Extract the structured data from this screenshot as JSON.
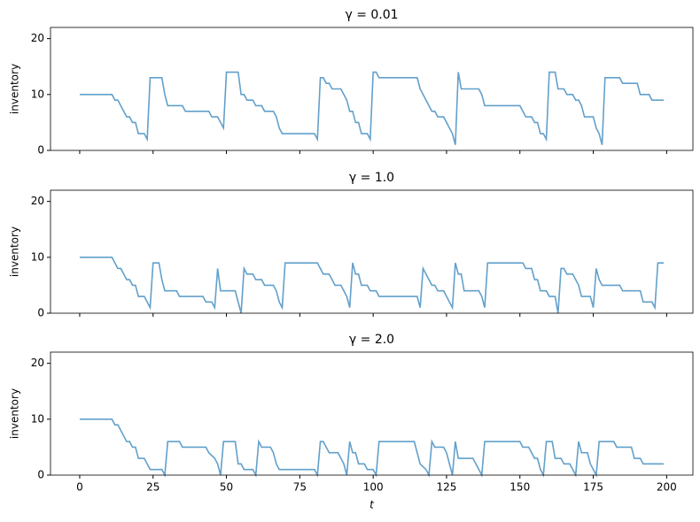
{
  "chart_data": [
    {
      "type": "line",
      "title": "γ = 0.01",
      "ylabel": "inventory",
      "color": "#62a0cb",
      "show_xticklabels": false,
      "xlim": [
        -9.95,
        208.95
      ],
      "ylim": [
        0,
        22
      ],
      "xticks": [
        0,
        25,
        50,
        75,
        100,
        125,
        150,
        175,
        200
      ],
      "yticks": [
        0,
        10,
        20
      ],
      "x": [
        0,
        11,
        12,
        13,
        14,
        15,
        16,
        17,
        18,
        19,
        20,
        22,
        23,
        24,
        28,
        29,
        30,
        35,
        36,
        44,
        45,
        47,
        48,
        49,
        50,
        54,
        55,
        56,
        57,
        59,
        60,
        62,
        63,
        66,
        67,
        68,
        69,
        80,
        81,
        82,
        83,
        84,
        85,
        86,
        89,
        90,
        91,
        92,
        93,
        94,
        95,
        96,
        98,
        99,
        100,
        101,
        102,
        115,
        116,
        118,
        120,
        121,
        122,
        124,
        125,
        126,
        127,
        128,
        129,
        130,
        136,
        137,
        138,
        150,
        151,
        152,
        154,
        155,
        156,
        157,
        158,
        159,
        160,
        162,
        163,
        165,
        166,
        168,
        169,
        170,
        171,
        172,
        175,
        176,
        177,
        178,
        179,
        184,
        185,
        190,
        191,
        194,
        195,
        199
      ],
      "values": [
        10,
        10,
        9,
        9,
        8,
        7,
        6,
        6,
        5,
        5,
        3,
        3,
        2,
        13,
        13,
        10,
        8,
        8,
        7,
        7,
        6,
        6,
        5,
        4,
        14,
        14,
        10,
        10,
        9,
        9,
        8,
        8,
        7,
        7,
        6,
        4,
        3,
        3,
        2,
        13,
        13,
        12,
        12,
        11,
        11,
        10,
        9,
        7,
        7,
        5,
        5,
        3,
        3,
        2,
        14,
        14,
        13,
        13,
        11,
        9,
        7,
        7,
        6,
        6,
        5,
        4,
        3,
        1,
        14,
        11,
        11,
        10,
        8,
        8,
        7,
        6,
        6,
        5,
        5,
        3,
        3,
        2,
        14,
        14,
        11,
        11,
        10,
        10,
        9,
        9,
        8,
        6,
        6,
        4,
        3,
        1,
        13,
        13,
        12,
        12,
        10,
        10,
        9,
        9
      ]
    },
    {
      "type": "line",
      "title": "γ = 1.0",
      "ylabel": "inventory",
      "color": "#62a0cb",
      "show_xticklabels": false,
      "xlim": [
        -9.95,
        208.95
      ],
      "ylim": [
        0,
        22
      ],
      "xticks": [
        0,
        25,
        50,
        75,
        100,
        125,
        150,
        175,
        200
      ],
      "yticks": [
        0,
        10,
        20
      ],
      "x": [
        0,
        11,
        12,
        13,
        14,
        15,
        16,
        17,
        18,
        19,
        20,
        22,
        23,
        24,
        25,
        27,
        28,
        29,
        33,
        34,
        42,
        43,
        45,
        46,
        47,
        48,
        53,
        54,
        55,
        56,
        57,
        59,
        60,
        62,
        63,
        66,
        67,
        68,
        69,
        70,
        81,
        82,
        83,
        85,
        86,
        87,
        89,
        90,
        91,
        92,
        93,
        94,
        95,
        96,
        98,
        99,
        101,
        102,
        115,
        116,
        117,
        118,
        120,
        121,
        122,
        124,
        125,
        126,
        127,
        128,
        129,
        130,
        131,
        136,
        137,
        138,
        139,
        151,
        152,
        154,
        155,
        156,
        157,
        159,
        160,
        162,
        163,
        164,
        165,
        166,
        168,
        169,
        170,
        171,
        174,
        175,
        176,
        177,
        178,
        184,
        185,
        191,
        192,
        195,
        196,
        197,
        199
      ],
      "values": [
        10,
        10,
        9,
        8,
        8,
        7,
        6,
        6,
        5,
        5,
        3,
        3,
        2,
        1,
        9,
        9,
        6,
        4,
        4,
        3,
        3,
        2,
        2,
        1,
        8,
        4,
        4,
        2,
        0,
        8,
        7,
        7,
        6,
        6,
        5,
        5,
        4,
        2,
        1,
        9,
        9,
        8,
        7,
        7,
        6,
        5,
        5,
        4,
        3,
        1,
        9,
        7,
        7,
        5,
        5,
        4,
        4,
        3,
        3,
        1,
        8,
        7,
        5,
        5,
        4,
        4,
        3,
        2,
        1,
        9,
        7,
        7,
        4,
        4,
        3,
        1,
        9,
        9,
        8,
        8,
        6,
        6,
        4,
        4,
        3,
        3,
        0,
        8,
        8,
        7,
        7,
        6,
        5,
        3,
        3,
        1,
        8,
        6,
        5,
        5,
        4,
        4,
        2,
        2,
        1,
        9,
        9
      ]
    },
    {
      "type": "line",
      "title": "γ = 2.0",
      "ylabel": "inventory",
      "xlabel": "t",
      "color": "#62a0cb",
      "show_xticklabels": true,
      "xlim": [
        -9.95,
        208.95
      ],
      "ylim": [
        0,
        22
      ],
      "xticks": [
        0,
        25,
        50,
        75,
        100,
        125,
        150,
        175,
        200
      ],
      "yticks": [
        0,
        10,
        20
      ],
      "x": [
        0,
        11,
        12,
        13,
        14,
        15,
        16,
        17,
        18,
        19,
        20,
        22,
        23,
        24,
        28,
        29,
        30,
        34,
        35,
        43,
        44,
        46,
        47,
        48,
        49,
        53,
        54,
        55,
        56,
        59,
        60,
        61,
        62,
        65,
        66,
        67,
        68,
        80,
        81,
        82,
        83,
        84,
        85,
        88,
        89,
        90,
        91,
        92,
        93,
        94,
        95,
        97,
        98,
        100,
        101,
        102,
        114,
        115,
        116,
        118,
        119,
        120,
        121,
        124,
        125,
        126,
        127,
        128,
        129,
        134,
        135,
        136,
        137,
        138,
        150,
        151,
        153,
        154,
        155,
        156,
        157,
        158,
        159,
        161,
        162,
        164,
        165,
        167,
        168,
        169,
        170,
        171,
        173,
        174,
        175,
        176,
        177,
        182,
        183,
        188,
        189,
        191,
        192,
        199
      ],
      "values": [
        10,
        10,
        9,
        9,
        8,
        7,
        6,
        6,
        5,
        5,
        3,
        3,
        2,
        1,
        1,
        0,
        6,
        6,
        5,
        5,
        4,
        3,
        2,
        0,
        6,
        6,
        2,
        2,
        1,
        1,
        0,
        6,
        5,
        5,
        4,
        2,
        1,
        1,
        0,
        6,
        6,
        5,
        4,
        4,
        3,
        2,
        0,
        6,
        4,
        4,
        2,
        2,
        1,
        1,
        0,
        6,
        6,
        4,
        2,
        1,
        0,
        6,
        5,
        5,
        4,
        2,
        0,
        6,
        3,
        3,
        2,
        1,
        0,
        6,
        6,
        5,
        5,
        4,
        3,
        3,
        1,
        0,
        6,
        6,
        3,
        3,
        2,
        2,
        1,
        0,
        6,
        4,
        4,
        2,
        1,
        0,
        6,
        6,
        5,
        5,
        3,
        3,
        2,
        2
      ]
    }
  ]
}
